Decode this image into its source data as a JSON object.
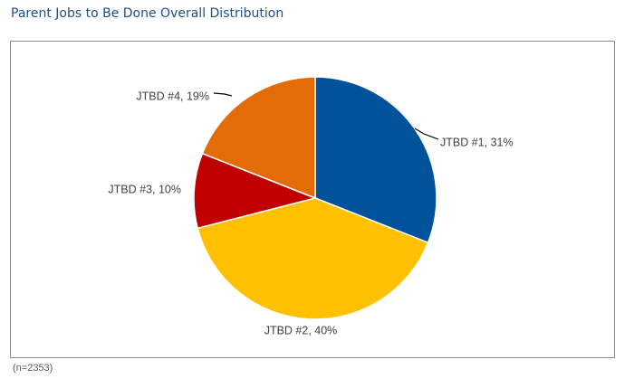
{
  "header": {
    "title": "Parent Jobs to Be Done Overall Distribution"
  },
  "footnote": "(n=2353)",
  "chart_data": {
    "type": "pie",
    "title": "Parent Jobs to Be Done Overall Distribution",
    "start_angle_deg": 0,
    "direction": "clockwise",
    "legend": "none",
    "slices": [
      {
        "name": "JTBD #1",
        "value": 31,
        "label": "JTBD #1, 31%",
        "color": "#00539b"
      },
      {
        "name": "JTBD #2",
        "value": 40,
        "label": "JTBD #2, 40%",
        "color": "#ffc000"
      },
      {
        "name": "JTBD #3",
        "value": 10,
        "label": "JTBD #3, 10%",
        "color": "#c00000"
      },
      {
        "name": "JTBD #4",
        "value": 19,
        "label": "JTBD #4, 19%",
        "color": "#e36c09"
      }
    ]
  }
}
